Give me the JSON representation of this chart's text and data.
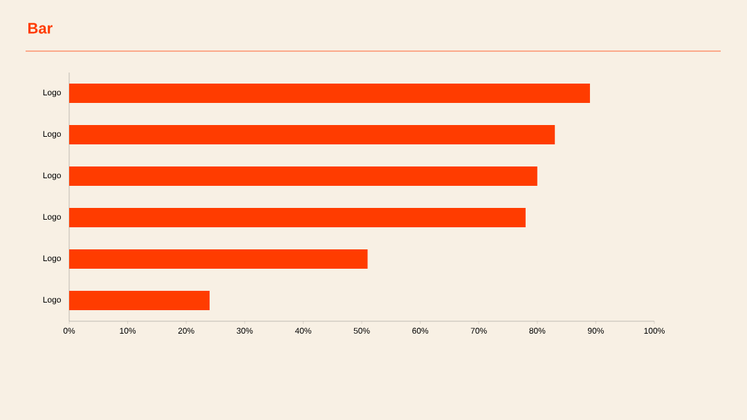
{
  "chart_data": {
    "type": "bar",
    "orientation": "horizontal",
    "title": "Bar",
    "categories": [
      "Logo",
      "Logo",
      "Logo",
      "Logo",
      "Logo",
      "Logo"
    ],
    "values": [
      89,
      83,
      80,
      78,
      51,
      24
    ],
    "color": "#ff3c00",
    "xlim": [
      0,
      100
    ],
    "xticks": [
      {
        "value": 0,
        "label": "0%"
      },
      {
        "value": 10,
        "label": "10%"
      },
      {
        "value": 20,
        "label": "20%"
      },
      {
        "value": 30,
        "label": "30%"
      },
      {
        "value": 40,
        "label": "40%"
      },
      {
        "value": 50,
        "label": "50%"
      },
      {
        "value": 60,
        "label": "60%"
      },
      {
        "value": 70,
        "label": "70%"
      },
      {
        "value": 80,
        "label": "80%"
      },
      {
        "value": 90,
        "label": "90%"
      },
      {
        "value": 100,
        "label": "100%"
      }
    ],
    "grid": false
  }
}
